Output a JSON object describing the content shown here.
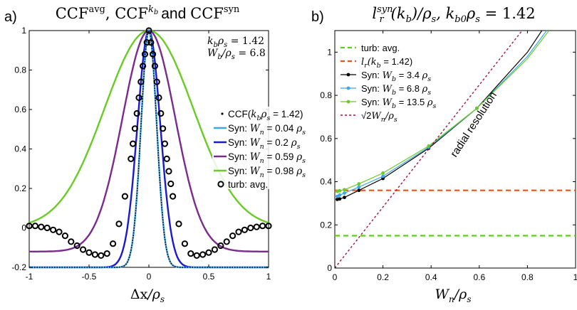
{
  "colors": {
    "black": "#000000",
    "light_blue": "#3ea6e8",
    "blue": "#1a1ad2",
    "purple": "#7b2a8e",
    "green": "#6acb25",
    "orange": "#e8541a",
    "dashed_green": "#62cc1e",
    "dark_red": "#a3123c"
  },
  "chart_data": [
    {
      "type": "line",
      "panel_label": "a)",
      "title": "CCF^avg, CCF^kb and CCF^syn",
      "title_parts": {
        "a": "CCF",
        "a_sup": "avg",
        "b": "CCF",
        "b_sup": "k",
        "b_sup_sub": "b",
        "and": "and",
        "c": "CCF",
        "c_sup": "syn"
      },
      "xlabel": "Δx/ρ_s",
      "xlabel_parts": {
        "num": "Δx",
        "sep": "/",
        "den": "ρ",
        "den_sub": "s"
      },
      "ylabel": "",
      "xlim": [
        -1,
        1
      ],
      "ylim": [
        -0.2,
        1
      ],
      "xticks": [
        "-1",
        "-0.5",
        "0",
        "0.5",
        "1"
      ],
      "yticks": [
        "-0.2",
        "0",
        "0.2",
        "0.4",
        "0.6",
        "0.8",
        "1"
      ],
      "annotations": [
        "k_b ρ_s = 1.42",
        "W_b/ρ_s = 6.8"
      ],
      "annotation_parts": [
        {
          "v": "k",
          "sub": "b",
          "v2": "ρ",
          "sub2": "s",
          "rest": " = 1.42"
        },
        {
          "v": "W",
          "sub": "b",
          "v2": "/ρ",
          "sub2": "s",
          "rest": " = 6.8"
        }
      ],
      "legend_position": "center-right",
      "legend": [
        {
          "label": "CCF(k_b ρ_s = 1.42)",
          "marker": "dot",
          "prefix": "CCF(",
          "v": "k",
          "sub": "b",
          "v2": "ρ",
          "sub2": "s",
          "rest": " = 1.42)"
        },
        {
          "label": "Syn: W_n = 0.04 ρ_s",
          "prefix": "Syn: ",
          "v": "W",
          "sub": "n",
          "rest": " = 0.04 ",
          "unit": "ρ",
          "unit_sub": "s"
        },
        {
          "label": "Syn: W_n = 0.2 ρ_s",
          "prefix": "Syn: ",
          "v": "W",
          "sub": "n",
          "rest": " = 0.2 ",
          "unit": "ρ",
          "unit_sub": "s"
        },
        {
          "label": "Syn: W_n = 0.59 ρ_s",
          "prefix": "Syn: ",
          "v": "W",
          "sub": "n",
          "rest": " = 0.59 ",
          "unit": "ρ",
          "unit_sub": "s"
        },
        {
          "label": "Syn: W_n = 0.98 ρ_s",
          "prefix": "Syn: ",
          "v": "W",
          "sub": "n",
          "rest": " = 0.98 ",
          "unit": "ρ",
          "unit_sub": "s"
        },
        {
          "label": "turb: avg.",
          "marker": "circle",
          "prefix": "turb: avg."
        }
      ],
      "series": [
        {
          "name": "CCF(k_b ρ_s = 1.42)",
          "style": "dotted",
          "width": 0.065,
          "neg": 0.2
        },
        {
          "name": "Syn: W_n = 0.04 ρ_s",
          "style": "solid",
          "width": 0.065,
          "neg": 0.2
        },
        {
          "name": "Syn: W_n = 0.2 ρ_s",
          "style": "solid",
          "width": 0.095,
          "neg": 0.2
        },
        {
          "name": "Syn: W_n = 0.59 ρ_s",
          "style": "solid",
          "width": 0.22,
          "neg": 0.12
        },
        {
          "name": "Syn: W_n = 0.98 ρ_s",
          "style": "solid",
          "width": 0.37,
          "neg": 0
        },
        {
          "name": "turb: avg.",
          "style": "circles",
          "x": [
            -1.0,
            -0.95,
            -0.9,
            -0.85,
            -0.8,
            -0.75,
            -0.7,
            -0.65,
            -0.6,
            -0.55,
            -0.5,
            -0.45,
            -0.4,
            -0.35,
            -0.3,
            -0.25,
            -0.2,
            -0.15,
            -0.1,
            -0.05,
            0.0,
            0.05,
            0.1,
            0.15,
            0.2,
            0.25,
            0.3,
            0.35,
            0.4,
            0.45,
            0.5,
            0.55,
            0.6,
            0.65,
            0.7,
            0.75,
            0.8,
            0.85,
            0.9,
            0.95,
            1.0
          ],
          "y": [
            0.01,
            0.01,
            0.005,
            0.0,
            -0.01,
            -0.02,
            -0.04,
            -0.07,
            -0.09,
            -0.11,
            -0.125,
            -0.135,
            -0.14,
            -0.13,
            -0.08,
            0.02,
            0.16,
            0.35,
            0.58,
            0.82,
            1.0,
            0.82,
            0.58,
            0.35,
            0.16,
            0.02,
            -0.08,
            -0.13,
            -0.14,
            -0.135,
            -0.125,
            -0.11,
            -0.09,
            -0.07,
            -0.04,
            -0.02,
            -0.01,
            0.0,
            0.005,
            0.01,
            0.01
          ]
        }
      ]
    },
    {
      "type": "line",
      "panel_label": "b)",
      "title": "l_r^syn(k_b)/ρ_s, k_b0 ρ_s = 1.42",
      "title_parts": {
        "l": "l",
        "l_sub": "r",
        "l_sup": "syn",
        "arg": "(k",
        "arg_sub": "b",
        "close": ")/ρ",
        "close_sub": "s",
        "comma": ", k",
        "k_sub": "b0",
        "rho": "ρ",
        "rho_sub": "s",
        "rest": " = 1.42"
      },
      "xlabel": "W_n/ρ_s",
      "xlabel_parts": {
        "v": "W",
        "sub": "n",
        "sep": "/ρ",
        "sub2": "s"
      },
      "ylabel": "",
      "xlim": [
        0,
        1
      ],
      "ylim": [
        0,
        1.1
      ],
      "xticks": [
        "0",
        "0.2",
        "0.4",
        "0.6",
        "0.8",
        "1"
      ],
      "yticks": [
        "0",
        "0.2",
        "0.4",
        "0.6",
        "0.8",
        "1"
      ],
      "annotations": [
        "radial resolution"
      ],
      "legend_position": "top-left",
      "legend": [
        {
          "label": "turb: avg.",
          "prefix": "turb: avg."
        },
        {
          "label": "l_r(k_b = 1.42)",
          "v": "l",
          "sub": "r",
          "prefix": "",
          "rest": "(k",
          "sub2": "b",
          "rest2": " = 1.42)"
        },
        {
          "label": "Syn: W_b = 3.4 ρ_s",
          "prefix": "Syn: ",
          "v": "W",
          "sub": "b",
          "rest": " = 3.4 ",
          "unit": "ρ",
          "unit_sub": "s"
        },
        {
          "label": "Syn: W_b = 6.8 ρ_s",
          "prefix": "Syn: ",
          "v": "W",
          "sub": "b",
          "rest": " = 6.8 ",
          "unit": "ρ",
          "unit_sub": "s"
        },
        {
          "label": "Syn: W_b = 13.5 ρ_s",
          "prefix": "Syn: ",
          "v": "W",
          "sub": "b",
          "rest": " = 13.5 ",
          "unit": "ρ",
          "unit_sub": "s"
        },
        {
          "label": "√2 W_n/ρ_s",
          "prefix": "√2",
          "v": "W",
          "sub": "n",
          "rest": "/ρ",
          "unit_sub": "s"
        }
      ],
      "series": [
        {
          "name": "turb: avg.",
          "style": "dashed",
          "x": [
            0,
            1
          ],
          "y": [
            0.15,
            0.15
          ]
        },
        {
          "name": "l_r(k_b = 1.42)",
          "style": "dashed",
          "x": [
            0,
            1
          ],
          "y": [
            0.36,
            0.36
          ]
        },
        {
          "name": "Syn: W_b = 3.4 ρ_s",
          "style": "markers",
          "x": [
            0.01,
            0.02,
            0.04,
            0.1,
            0.2,
            0.39,
            0.59,
            0.8,
            0.86
          ],
          "y": [
            0.318,
            0.32,
            0.327,
            0.36,
            0.415,
            0.555,
            0.74,
            1.0,
            1.1
          ],
          "markers_upto": 6
        },
        {
          "name": "Syn: W_b = 6.8 ρ_s",
          "style": "markers",
          "x": [
            0.01,
            0.02,
            0.04,
            0.1,
            0.2,
            0.39,
            0.59,
            0.8,
            0.88
          ],
          "y": [
            0.332,
            0.338,
            0.347,
            0.375,
            0.425,
            0.56,
            0.74,
            0.98,
            1.1
          ],
          "markers_upto": 6
        },
        {
          "name": "Syn: W_b = 13.5 ρ_s",
          "style": "markers",
          "x": [
            0.01,
            0.02,
            0.04,
            0.1,
            0.2,
            0.39,
            0.59,
            0.8,
            0.89
          ],
          "y": [
            0.355,
            0.358,
            0.363,
            0.39,
            0.44,
            0.565,
            0.74,
            0.97,
            1.1
          ],
          "markers_upto": 6
        },
        {
          "name": "√2 W_n/ρ_s",
          "style": "dotted",
          "x": [
            0,
            0.778
          ],
          "y": [
            0,
            1.1
          ]
        }
      ]
    }
  ]
}
